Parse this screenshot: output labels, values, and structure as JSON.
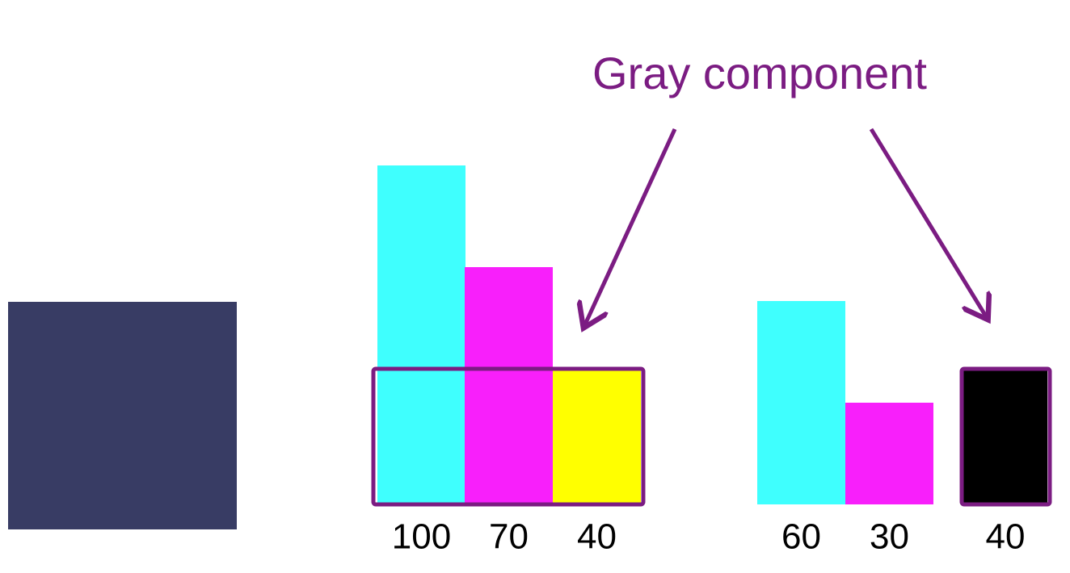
{
  "title": "Gray component",
  "swatch_color": "#383c64",
  "box_color": "#7b1c82",
  "groups": [
    {
      "values": [
        100,
        70,
        40
      ],
      "colors": [
        "#3ffffe",
        "#f81ffb",
        "#ffff00"
      ]
    },
    {
      "values": [
        60,
        30,
        40
      ],
      "colors": [
        "#3ffffe",
        "#f81ffb",
        "#000000"
      ]
    }
  ]
}
